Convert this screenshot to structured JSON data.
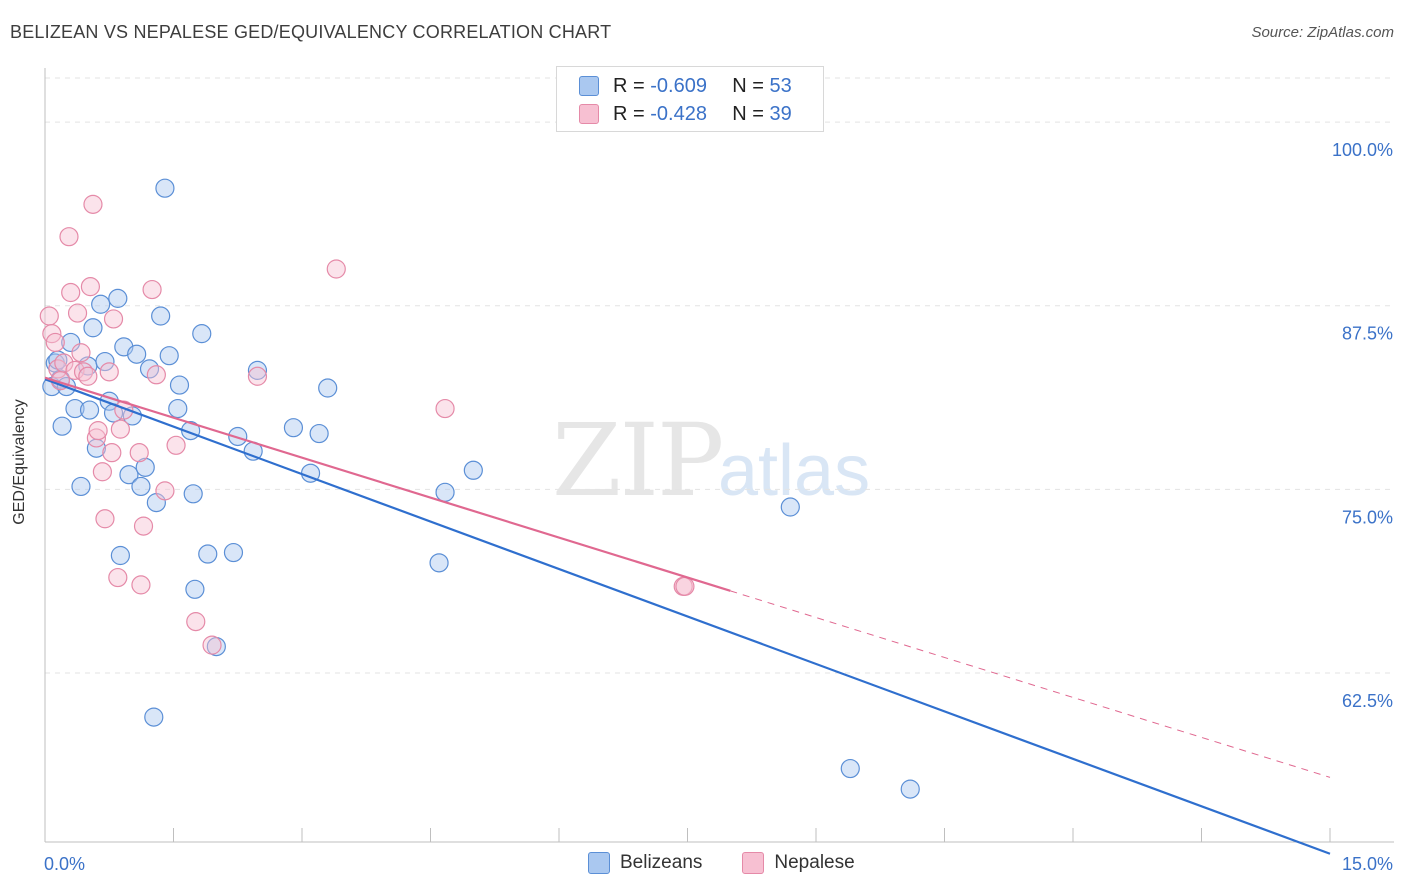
{
  "header": {
    "title": "BELIZEAN VS NEPALESE GED/EQUIVALENCY CORRELATION CHART",
    "source": "Source: ZipAtlas.com"
  },
  "watermark": {
    "zip": "ZIP",
    "atlas": "atlas"
  },
  "legend": {
    "r_label": "R =",
    "n_label": "N =",
    "belizean": {
      "r": "-0.609",
      "n": "53"
    },
    "nepalese": {
      "r": "-0.428",
      "n": "39"
    }
  },
  "colors": {
    "belizean_fill": "#aac8f0",
    "belizean_stroke": "#5b8fd6",
    "belizean_line": "#2f6fce",
    "nepalese_fill": "#f7c0d2",
    "nepalese_stroke": "#e58aa8",
    "nepalese_line": "#e06890",
    "axis_text": "#3b72c8",
    "grid": "#e3e3e3"
  },
  "chart_data": {
    "type": "scatter",
    "title": "BELIZEAN VS NEPALESE GED/EQUIVALENCY CORRELATION CHART",
    "xlabel": "",
    "ylabel": "GED/Equivalency",
    "xlim": [
      0,
      15
    ],
    "ylim": [
      51,
      103
    ],
    "x_tick_labels": [
      "0.0%",
      "15.0%"
    ],
    "y_ticks": [
      62.5,
      75.0,
      87.5,
      100.0
    ],
    "y_tick_labels": [
      "62.5%",
      "75.0%",
      "87.5%",
      "100.0%"
    ],
    "grid": true,
    "series": [
      {
        "name": "Belizeans",
        "points": [
          [
            0.08,
            82.0
          ],
          [
            0.12,
            83.6
          ],
          [
            0.15,
            83.8
          ],
          [
            0.18,
            82.5
          ],
          [
            0.2,
            79.3
          ],
          [
            0.25,
            82.0
          ],
          [
            0.3,
            85.0
          ],
          [
            0.35,
            80.5
          ],
          [
            0.42,
            75.2
          ],
          [
            0.5,
            83.4
          ],
          [
            0.52,
            80.4
          ],
          [
            0.56,
            86.0
          ],
          [
            0.6,
            77.8
          ],
          [
            0.65,
            87.6
          ],
          [
            0.7,
            83.7
          ],
          [
            0.75,
            81.0
          ],
          [
            0.8,
            80.2
          ],
          [
            0.85,
            88.0
          ],
          [
            0.88,
            70.5
          ],
          [
            0.92,
            84.7
          ],
          [
            0.98,
            76.0
          ],
          [
            1.02,
            80.0
          ],
          [
            1.07,
            84.2
          ],
          [
            1.12,
            75.2
          ],
          [
            1.17,
            76.5
          ],
          [
            1.22,
            83.2
          ],
          [
            1.27,
            59.5
          ],
          [
            1.3,
            74.1
          ],
          [
            1.35,
            86.8
          ],
          [
            1.4,
            95.5
          ],
          [
            1.45,
            84.1
          ],
          [
            1.55,
            80.5
          ],
          [
            1.57,
            82.1
          ],
          [
            1.7,
            79.0
          ],
          [
            1.73,
            74.7
          ],
          [
            1.75,
            68.2
          ],
          [
            1.83,
            85.6
          ],
          [
            1.9,
            70.6
          ],
          [
            2.0,
            64.3
          ],
          [
            2.2,
            70.7
          ],
          [
            2.25,
            78.6
          ],
          [
            2.43,
            77.6
          ],
          [
            2.48,
            83.1
          ],
          [
            2.9,
            79.2
          ],
          [
            3.1,
            76.1
          ],
          [
            3.2,
            78.8
          ],
          [
            3.3,
            81.9
          ],
          [
            4.6,
            70.0
          ],
          [
            4.67,
            74.8
          ],
          [
            5.0,
            76.3
          ],
          [
            8.7,
            73.8
          ],
          [
            9.4,
            56.0
          ],
          [
            10.1,
            54.6
          ]
        ]
      },
      {
        "name": "Nepalese",
        "points": [
          [
            0.05,
            86.8
          ],
          [
            0.08,
            85.6
          ],
          [
            0.12,
            85.0
          ],
          [
            0.15,
            83.2
          ],
          [
            0.18,
            82.4
          ],
          [
            0.22,
            83.6
          ],
          [
            0.28,
            92.2
          ],
          [
            0.3,
            88.4
          ],
          [
            0.35,
            83.1
          ],
          [
            0.38,
            87.0
          ],
          [
            0.42,
            84.3
          ],
          [
            0.45,
            83.0
          ],
          [
            0.5,
            82.7
          ],
          [
            0.53,
            88.8
          ],
          [
            0.56,
            94.4
          ],
          [
            0.6,
            78.5
          ],
          [
            0.62,
            79.0
          ],
          [
            0.67,
            76.2
          ],
          [
            0.7,
            73.0
          ],
          [
            0.75,
            83.0
          ],
          [
            0.78,
            77.5
          ],
          [
            0.8,
            86.6
          ],
          [
            0.85,
            69.0
          ],
          [
            0.88,
            79.1
          ],
          [
            0.92,
            80.4
          ],
          [
            1.1,
            77.5
          ],
          [
            1.12,
            68.5
          ],
          [
            1.15,
            72.5
          ],
          [
            1.25,
            88.6
          ],
          [
            1.3,
            82.8
          ],
          [
            1.4,
            74.9
          ],
          [
            1.53,
            78.0
          ],
          [
            1.76,
            66.0
          ],
          [
            1.95,
            64.4
          ],
          [
            2.48,
            82.7
          ],
          [
            3.4,
            90.0
          ],
          [
            4.67,
            80.5
          ],
          [
            7.45,
            68.4
          ],
          [
            7.47,
            68.4
          ]
        ]
      }
    ],
    "trendlines": [
      {
        "series": "Belizeans",
        "x": [
          0.0,
          15.0
        ],
        "y": [
          82.5,
          50.2
        ],
        "dashed_from": null
      },
      {
        "series": "Nepalese",
        "x": [
          0.0,
          15.0
        ],
        "y": [
          82.6,
          55.4
        ],
        "dashed_from": 8.0
      }
    ]
  },
  "bottom_legend": [
    "Belizeans",
    "Nepalese"
  ]
}
